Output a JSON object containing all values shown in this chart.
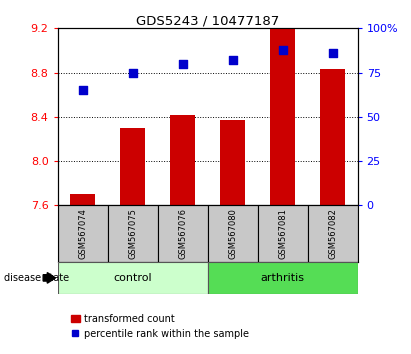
{
  "title": "GDS5243 / 10477187",
  "categories": [
    "GSM567074",
    "GSM567075",
    "GSM567076",
    "GSM567080",
    "GSM567081",
    "GSM567082"
  ],
  "red_values": [
    7.7,
    8.3,
    8.42,
    8.37,
    9.19,
    8.83
  ],
  "blue_values": [
    65,
    75,
    80,
    82,
    88,
    86
  ],
  "ylim_left": [
    7.6,
    9.2
  ],
  "ylim_right": [
    0,
    100
  ],
  "left_ticks": [
    7.6,
    8.0,
    8.4,
    8.8,
    9.2
  ],
  "right_ticks": [
    0,
    25,
    50,
    75,
    100
  ],
  "right_tick_labels": [
    "0",
    "25",
    "50",
    "75",
    "100%"
  ],
  "bar_color": "#cc0000",
  "dot_color": "#0000cc",
  "bg_label": "#c8c8c8",
  "bg_control": "#ccffcc",
  "bg_arthritis": "#55dd55",
  "control_label": "control",
  "arthritis_label": "arthritis",
  "disease_state_label": "disease state",
  "legend_red": "transformed count",
  "legend_blue": "percentile rank within the sample",
  "control_indices": [
    0,
    1,
    2
  ],
  "arthritis_indices": [
    3,
    4,
    5
  ],
  "bar_width": 0.5,
  "dot_size": 35
}
